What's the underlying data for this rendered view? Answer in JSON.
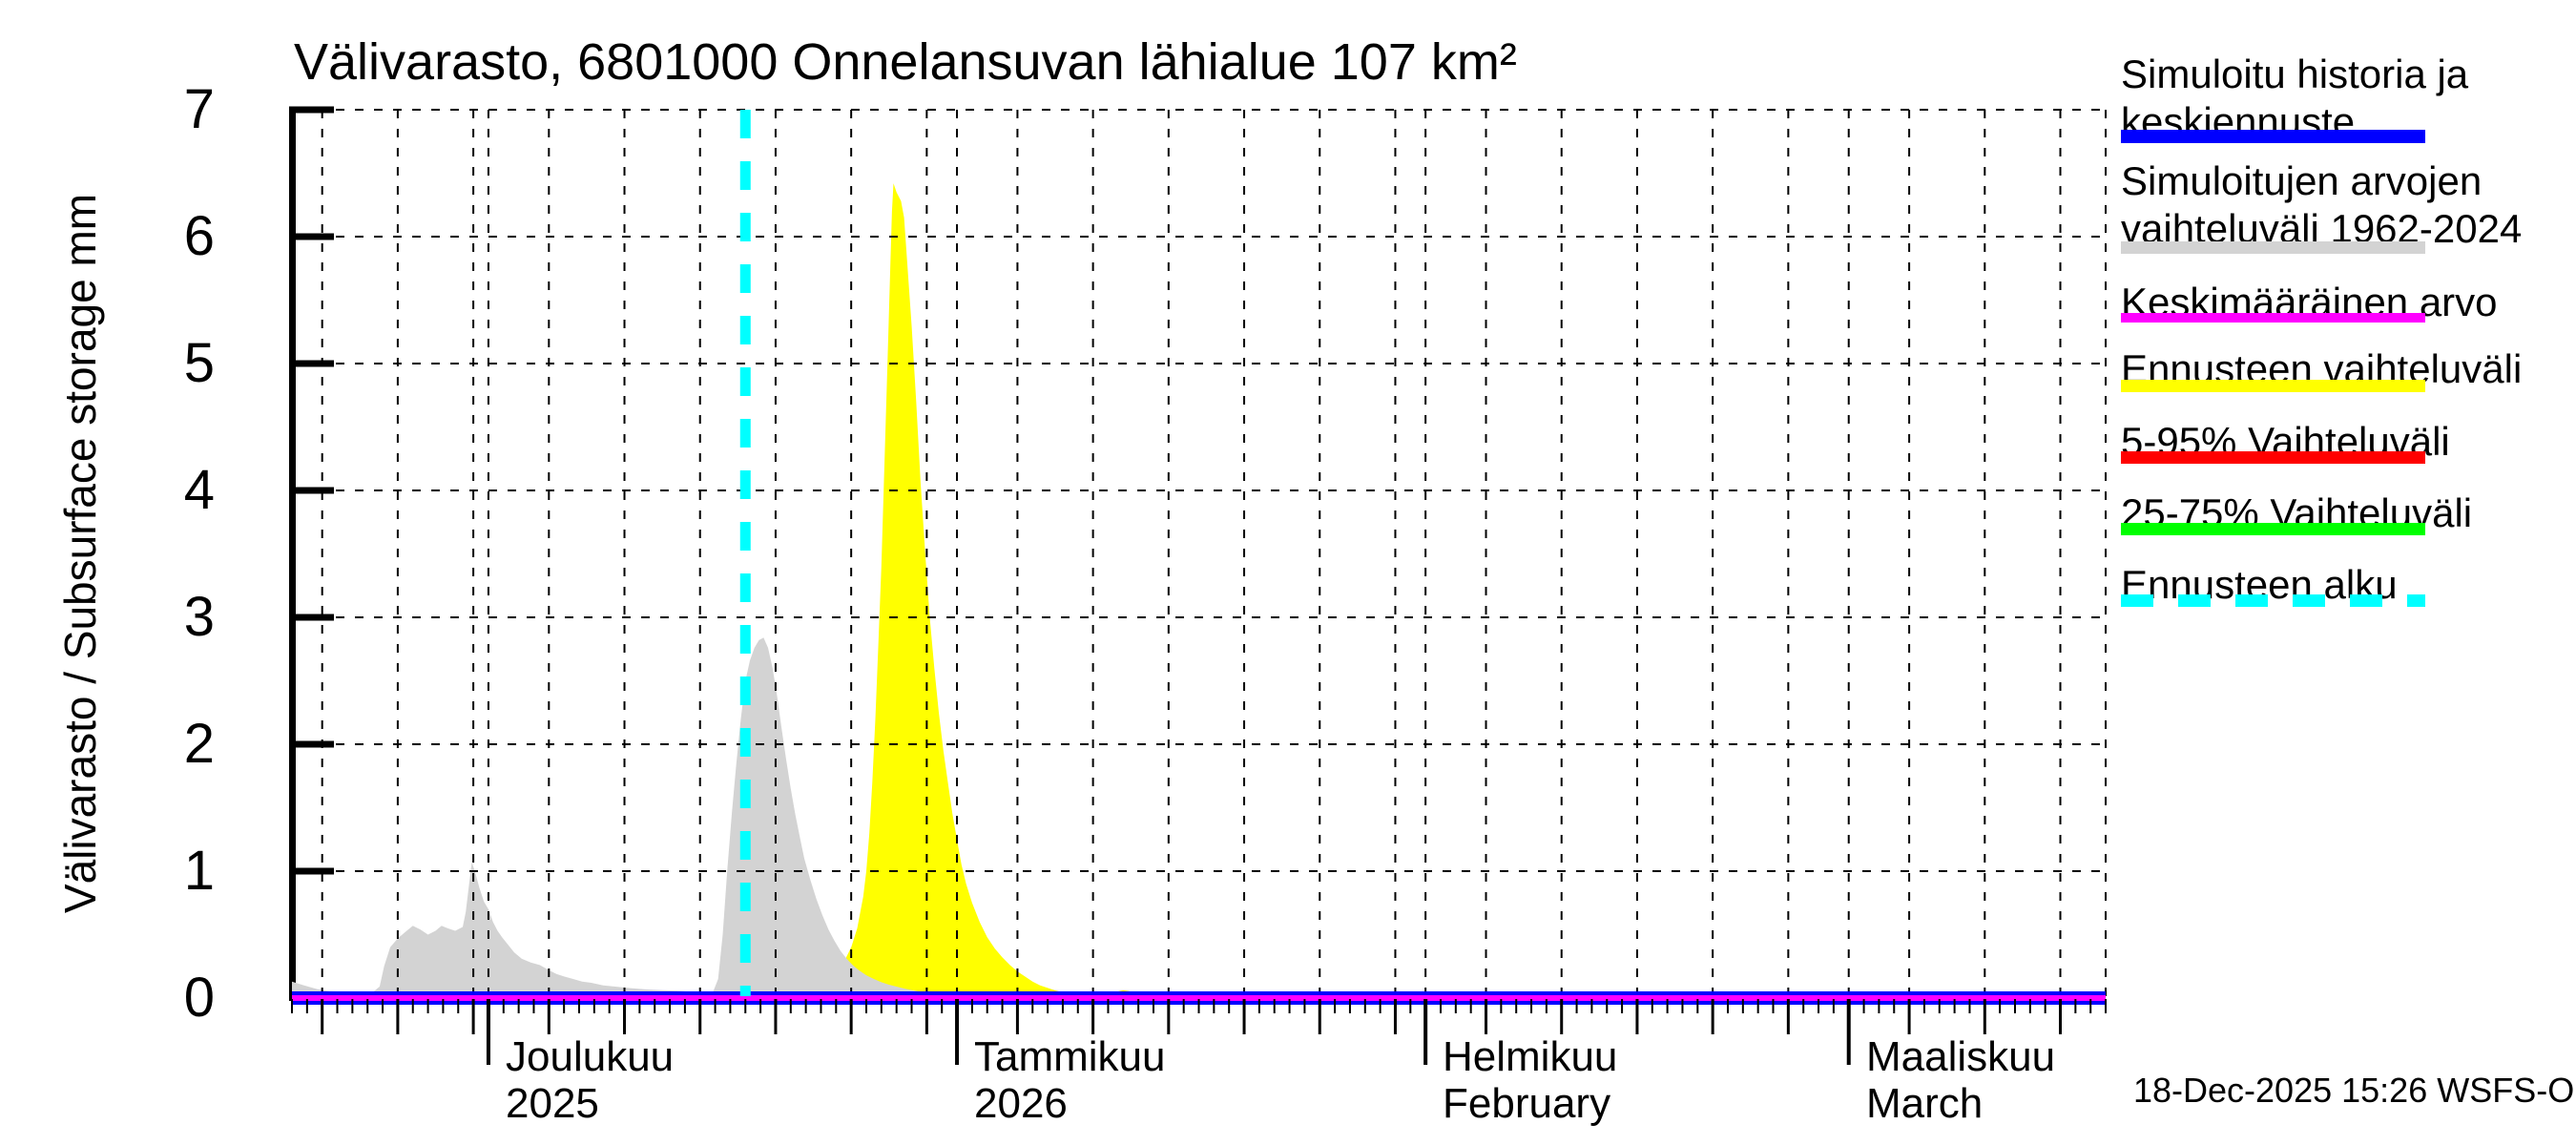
{
  "title": "Välivarasto, 6801000 Onnelansuvan lähialue 107 km²",
  "y_axis": {
    "label": "Välivarasto / Subsurface storage  mm",
    "ticks": [
      "0",
      "1",
      "2",
      "3",
      "4",
      "5",
      "6",
      "7"
    ]
  },
  "x_axis": {
    "months": [
      {
        "name": "Joulukuu",
        "sub": "2025"
      },
      {
        "name": "Tammikuu",
        "sub": "2026"
      },
      {
        "name": "Helmikuu",
        "sub": "February"
      },
      {
        "name": "Maaliskuu",
        "sub": "March"
      }
    ]
  },
  "timestamp": "18-Dec-2025 15:26 WSFS-O",
  "legend": [
    {
      "lines": [
        "Simuloitu historia ja",
        "keskiennuste"
      ],
      "color": "#0000FF",
      "dashed": false
    },
    {
      "lines": [
        "Simuloitujen arvojen",
        "vaihteluväli 1962-2024"
      ],
      "color": "#D3D3D3",
      "dashed": false
    },
    {
      "lines": [
        "Keskimääräinen arvo"
      ],
      "color": "#FF00FF",
      "dashed": false
    },
    {
      "lines": [
        "Ennusteen vaihteluväli"
      ],
      "color": "#FFFF00",
      "dashed": false
    },
    {
      "lines": [
        "5-95% Vaihteluväli"
      ],
      "color": "#FF0000",
      "dashed": false
    },
    {
      "lines": [
        "25-75% Vaihteluväli"
      ],
      "color": "#00FF00",
      "dashed": false
    },
    {
      "lines": [
        "Ennusteen alku"
      ],
      "color": "#00FFFF",
      "dashed": true
    }
  ],
  "chart_data": {
    "type": "area",
    "title": "Välivarasto, 6801000 Onnelansuvan lähialue 107 km²",
    "ylabel": "Välivarasto / Subsurface storage mm",
    "ylim": [
      0,
      7
    ],
    "x_start_date": "2025-11-18",
    "x_total_days": 120,
    "forecast_start_day": 30,
    "forecast_start_date": "2025-12-18",
    "y_gridlines": [
      1,
      2,
      3,
      4,
      5,
      6,
      7
    ],
    "x_gridline_days": [
      2,
      7,
      12,
      13,
      17,
      22,
      27,
      32,
      37,
      42,
      44,
      48,
      53,
      58,
      63,
      68,
      73,
      75,
      79,
      84,
      89,
      94,
      99,
      103,
      107,
      112,
      117,
      120
    ],
    "five_day_tick_days": [
      2,
      7,
      12,
      17,
      22,
      27,
      32,
      37,
      42,
      48,
      53,
      58,
      63,
      68,
      73,
      79,
      84,
      89,
      94,
      99,
      107,
      112,
      117
    ],
    "month_tick_days": [
      13,
      44,
      75,
      103
    ],
    "colors": {
      "history_mean": "#0000FF",
      "sim_range": "#D3D3D3",
      "longterm_mean": "#FF00FF",
      "forecast_range": "#FFFF00",
      "p5_95": "#FF0000",
      "p25_75": "#00FF00",
      "forecast_start": "#00FFFF"
    },
    "series": [
      {
        "id": "forecast-range",
        "name": "Ennusteen vaihteluväli",
        "type": "area",
        "color": "#FFFF00",
        "points": [
          [
            30,
            0
          ],
          [
            31,
            0.005
          ],
          [
            32,
            0.01
          ],
          [
            33,
            0.03
          ],
          [
            34,
            0.06
          ],
          [
            35,
            0.1
          ],
          [
            35.5,
            0.14
          ],
          [
            36,
            0.2
          ],
          [
            36.5,
            0.28
          ],
          [
            37,
            0.4
          ],
          [
            37.4,
            0.55
          ],
          [
            37.8,
            0.8
          ],
          [
            38,
            1.0
          ],
          [
            38.2,
            1.3
          ],
          [
            38.4,
            1.7
          ],
          [
            38.6,
            2.2
          ],
          [
            38.8,
            2.8
          ],
          [
            39,
            3.4
          ],
          [
            39.2,
            4.2
          ],
          [
            39.4,
            5.0
          ],
          [
            39.6,
            5.8
          ],
          [
            39.7,
            6.2
          ],
          [
            39.8,
            6.42
          ],
          [
            40,
            6.35
          ],
          [
            40.3,
            6.28
          ],
          [
            40.5,
            6.15
          ],
          [
            41,
            5.3
          ],
          [
            41.3,
            4.7
          ],
          [
            41.6,
            4.05
          ],
          [
            41.9,
            3.5
          ],
          [
            42.2,
            3.0
          ],
          [
            42.5,
            2.6
          ],
          [
            42.8,
            2.25
          ],
          [
            43.1,
            1.95
          ],
          [
            43.4,
            1.7
          ],
          [
            43.7,
            1.45
          ],
          [
            44,
            1.25
          ],
          [
            44.3,
            1.05
          ],
          [
            44.6,
            0.9
          ],
          [
            45,
            0.75
          ],
          [
            45.5,
            0.6
          ],
          [
            46,
            0.48
          ],
          [
            46.5,
            0.39
          ],
          [
            47,
            0.32
          ],
          [
            47.5,
            0.26
          ],
          [
            48,
            0.21
          ],
          [
            48.5,
            0.17
          ],
          [
            49,
            0.13
          ],
          [
            49.5,
            0.1
          ],
          [
            50,
            0.08
          ],
          [
            50.5,
            0.06
          ],
          [
            51,
            0.045
          ],
          [
            52,
            0.028
          ],
          [
            53,
            0.017
          ],
          [
            54,
            0.01
          ],
          [
            55,
            0.006
          ],
          [
            56,
            0.003
          ],
          [
            57,
            0
          ]
        ]
      },
      {
        "id": "forecast-range-late",
        "name": "Ennusteen vaihteluväli",
        "type": "area",
        "color": "#FFFF00",
        "points": [
          [
            53.8,
            0
          ],
          [
            54.2,
            0.025
          ],
          [
            54.6,
            0.05
          ],
          [
            55,
            0.062
          ],
          [
            55.4,
            0.055
          ],
          [
            55.8,
            0.04
          ],
          [
            56.2,
            0.02
          ],
          [
            56.6,
            0.005
          ],
          [
            56.9,
            0
          ]
        ]
      },
      {
        "id": "sim-range",
        "name": "Simuloitujen arvojen vaihteluväli 1962-2024",
        "type": "area",
        "color": "#D3D3D3",
        "points": [
          [
            0,
            0.13
          ],
          [
            0.8,
            0.1
          ],
          [
            1.7,
            0.07
          ],
          [
            2.5,
            0.055
          ],
          [
            3.5,
            0.05
          ],
          [
            4.5,
            0.048
          ],
          [
            5.4,
            0.05
          ],
          [
            5.8,
            0.09
          ],
          [
            6.1,
            0.25
          ],
          [
            6.5,
            0.4
          ],
          [
            7,
            0.47
          ],
          [
            7.5,
            0.52
          ],
          [
            8,
            0.57
          ],
          [
            8.5,
            0.54
          ],
          [
            9,
            0.5
          ],
          [
            9.5,
            0.53
          ],
          [
            9.9,
            0.57
          ],
          [
            10.3,
            0.55
          ],
          [
            10.8,
            0.53
          ],
          [
            11.3,
            0.56
          ],
          [
            11.5,
            0.68
          ],
          [
            11.7,
            0.88
          ],
          [
            11.9,
            1.07
          ],
          [
            12.1,
            1.0
          ],
          [
            12.4,
            0.87
          ],
          [
            12.7,
            0.76
          ],
          [
            13,
            0.7
          ],
          [
            13.3,
            0.6
          ],
          [
            13.6,
            0.53
          ],
          [
            13.9,
            0.48
          ],
          [
            14.3,
            0.42
          ],
          [
            14.7,
            0.36
          ],
          [
            15.2,
            0.31
          ],
          [
            15.8,
            0.28
          ],
          [
            16.4,
            0.26
          ],
          [
            17,
            0.22
          ],
          [
            17.5,
            0.19
          ],
          [
            18,
            0.17
          ],
          [
            18.6,
            0.15
          ],
          [
            19.2,
            0.13
          ],
          [
            19.8,
            0.12
          ],
          [
            20.6,
            0.1
          ],
          [
            21.4,
            0.09
          ],
          [
            22.4,
            0.078
          ],
          [
            23.5,
            0.068
          ],
          [
            24.5,
            0.062
          ],
          [
            25.6,
            0.057
          ],
          [
            26.6,
            0.048
          ],
          [
            27.2,
            0.04
          ],
          [
            27.6,
            0.01
          ],
          [
            27.75,
            0.01
          ],
          [
            27.9,
            0.06
          ],
          [
            28.2,
            0.15
          ],
          [
            28.5,
            0.5
          ],
          [
            28.8,
            1.0
          ],
          [
            29.1,
            1.45
          ],
          [
            29.4,
            1.85
          ],
          [
            29.7,
            2.2
          ],
          [
            30,
            2.5
          ],
          [
            30.3,
            2.66
          ],
          [
            30.6,
            2.76
          ],
          [
            30.9,
            2.82
          ],
          [
            31.2,
            2.84
          ],
          [
            31.5,
            2.76
          ],
          [
            31.8,
            2.6
          ],
          [
            32.1,
            2.38
          ],
          [
            32.4,
            2.12
          ],
          [
            32.7,
            1.88
          ],
          [
            33,
            1.65
          ],
          [
            33.3,
            1.45
          ],
          [
            33.6,
            1.27
          ],
          [
            33.9,
            1.1
          ],
          [
            34.3,
            0.93
          ],
          [
            34.7,
            0.78
          ],
          [
            35.1,
            0.65
          ],
          [
            35.5,
            0.54
          ],
          [
            35.9,
            0.45
          ],
          [
            36.3,
            0.37
          ],
          [
            36.7,
            0.31
          ],
          [
            37.1,
            0.26
          ],
          [
            37.5,
            0.22
          ],
          [
            38,
            0.18
          ],
          [
            38.5,
            0.15
          ],
          [
            39,
            0.125
          ],
          [
            39.5,
            0.105
          ],
          [
            40,
            0.09
          ],
          [
            40.6,
            0.072
          ],
          [
            41.2,
            0.058
          ],
          [
            41.8,
            0.047
          ],
          [
            42.4,
            0.038
          ],
          [
            43,
            0.03
          ],
          [
            43.6,
            0.025
          ],
          [
            44.2,
            0.02
          ],
          [
            45,
            0.015
          ],
          [
            46,
            0.011
          ],
          [
            47,
            0.008
          ],
          [
            48,
            0.006
          ],
          [
            49,
            0.004
          ],
          [
            50,
            0.003
          ],
          [
            51.5,
            0.002
          ],
          [
            53,
            0
          ]
        ]
      },
      {
        "id": "history-mean",
        "name": "Simuloitu historia ja keskiennuste",
        "type": "line",
        "color": "#0000FF",
        "width": 14,
        "points": [
          [
            0,
            0
          ],
          [
            120,
            0
          ]
        ]
      },
      {
        "id": "longterm-mean",
        "name": "Keskimääräinen arvo",
        "type": "line",
        "color": "#FF00FF",
        "width": 6,
        "points": [
          [
            0,
            0
          ],
          [
            120,
            0
          ]
        ]
      }
    ]
  }
}
